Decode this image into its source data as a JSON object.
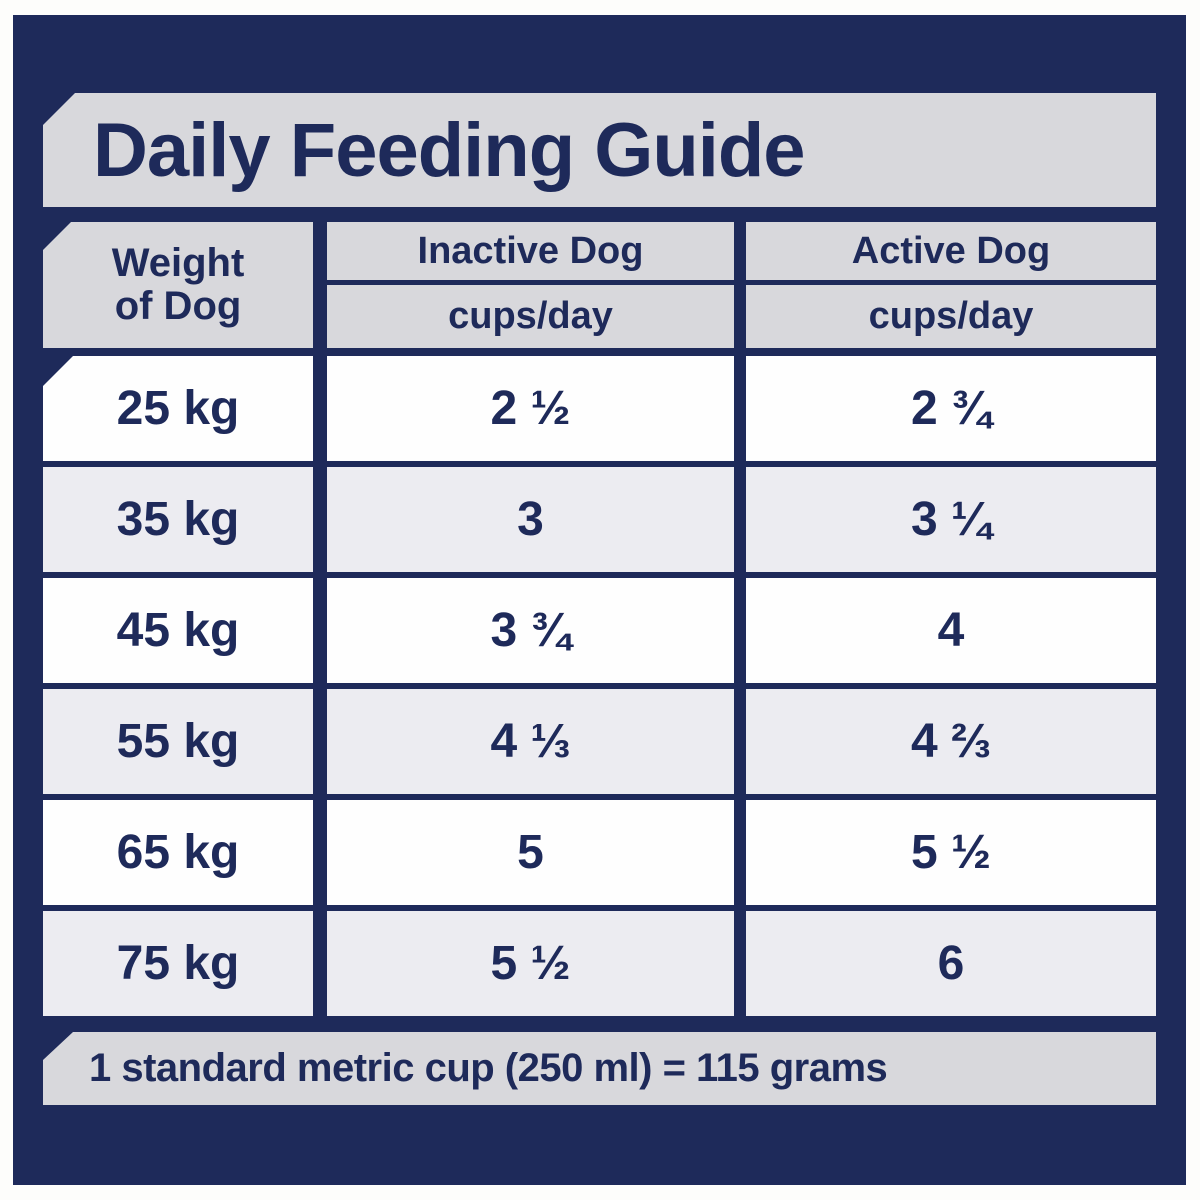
{
  "chart_data": {
    "type": "table",
    "title": "Daily Feeding Guide",
    "columns": [
      {
        "label_line1": "Weight",
        "label_line2": "of Dog"
      },
      {
        "label": "Inactive Dog",
        "unit": "cups/day"
      },
      {
        "label": "Active Dog",
        "unit": "cups/day"
      }
    ],
    "rows": [
      [
        "25 kg",
        "2 ½",
        "2 ¾"
      ],
      [
        "35 kg",
        "3",
        "3 ¼"
      ],
      [
        "45 kg",
        "3 ¾",
        "4"
      ],
      [
        "55 kg",
        "4 ⅓",
        "4 ⅔"
      ],
      [
        "65 kg",
        "5",
        "5 ½"
      ],
      [
        "75 kg",
        "5 ½",
        "6"
      ]
    ],
    "footnote": "1 standard metric cup (250 ml) = 115 grams",
    "layout": {
      "legend": "none",
      "grid": "navy separators between all cells",
      "row_striping": "white / light-gray alternating"
    }
  },
  "colors": {
    "navy": "#1e2a5a",
    "header_gray": "#d8d8dc",
    "row_white": "#fefefe",
    "row_gray": "#ececf1",
    "outer_border_white": "#fdfdfb"
  }
}
